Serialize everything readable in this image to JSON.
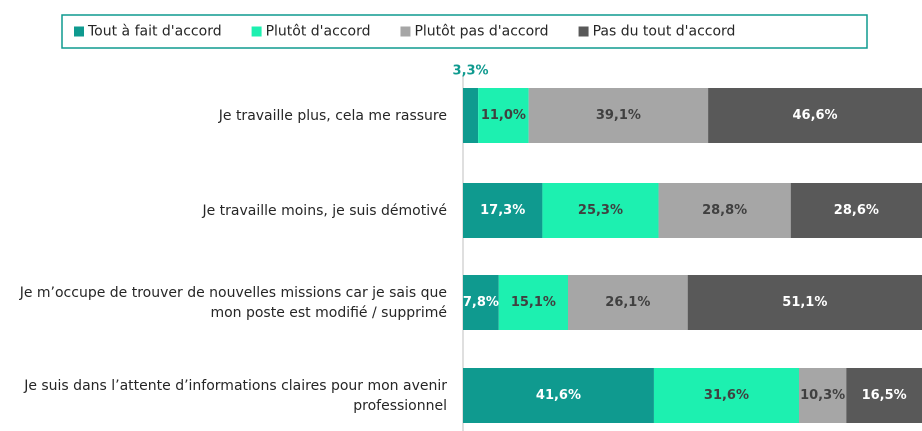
{
  "chart_data": {
    "type": "stacked-bar-horizontal",
    "categories": [
      "Je travaille plus, cela me rassure",
      "Je travaille moins, je suis démotivé",
      "Je m’occupe de trouver de nouvelles missions car je sais que mon poste est modifié / supprimé",
      "Je suis dans l’attente d’informations claires pour mon avenir professionnel"
    ],
    "series": [
      {
        "name": "Tout à fait d'accord",
        "color": "#0f9a8f",
        "values": [
          3.3,
          17.3,
          7.8,
          41.6
        ],
        "value_labels": [
          "3,3%",
          "17,3%",
          "7,8%",
          "41,6%"
        ]
      },
      {
        "name": "Plutôt d'accord",
        "color": "#1df0b0",
        "values": [
          11.0,
          25.3,
          15.1,
          31.6
        ],
        "value_labels": [
          "11,0%",
          "25,3%",
          "15,1%",
          "31,6%"
        ]
      },
      {
        "name": "Plutôt pas d'accord",
        "color": "#a6a6a6",
        "values": [
          39.1,
          28.8,
          26.1,
          10.3
        ],
        "value_labels": [
          "39,1%",
          "28,8%",
          "26,1%",
          "10,3%"
        ]
      },
      {
        "name": "Pas du tout d'accord",
        "color": "#595959",
        "values": [
          46.6,
          28.6,
          51.1,
          16.5
        ],
        "value_labels": [
          "46,6%",
          "28,6%",
          "51,1%",
          "16,5%"
        ]
      }
    ],
    "legend": "top"
  }
}
